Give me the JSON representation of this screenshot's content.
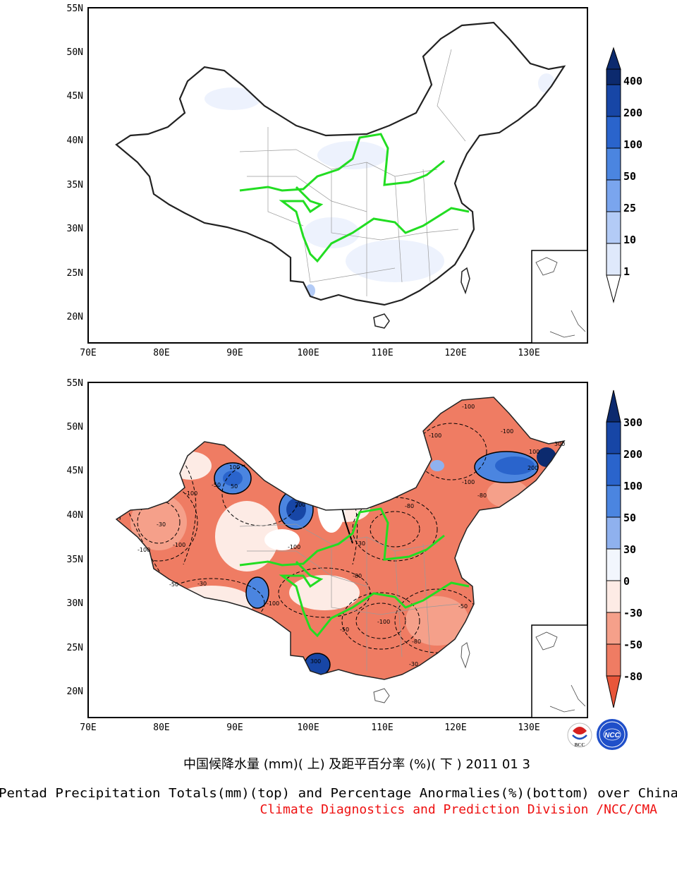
{
  "top_map": {
    "lat_labels": [
      "55N",
      "50N",
      "45N",
      "40N",
      "35N",
      "30N",
      "25N",
      "20N"
    ],
    "lon_labels": [
      "70E",
      "80E",
      "90E",
      "100E",
      "110E",
      "120E",
      "130E"
    ],
    "colorbar": {
      "labels": [
        "400",
        "200",
        "100",
        "50",
        "25",
        "10",
        "1"
      ],
      "colors": [
        "#0c2a6e",
        "#1746a6",
        "#2a64cc",
        "#4b85e0",
        "#7aa5ee",
        "#b3cbf6",
        "#dfe9fb",
        "#ffffff"
      ]
    }
  },
  "bottom_map": {
    "lat_labels": [
      "55N",
      "50N",
      "45N",
      "40N",
      "35N",
      "30N",
      "25N",
      "20N"
    ],
    "lon_labels": [
      "70E",
      "80E",
      "90E",
      "100E",
      "110E",
      "120E",
      "130E"
    ],
    "colorbar": {
      "labels": [
        "300",
        "200",
        "100",
        "50",
        "30",
        "0",
        "-30",
        "-50",
        "-80"
      ],
      "colors": [
        "#0c2a6e",
        "#1746a6",
        "#2a64cc",
        "#4b85e0",
        "#8fb1ee",
        "#f2f6fd",
        "#fdebe5",
        "#f5a08a",
        "#ef7c63",
        "#e8563a"
      ]
    },
    "contour_labels": [
      "-100",
      "-100",
      "-100",
      "-100",
      "-100",
      "-100",
      "-100",
      "-100",
      "-100",
      "-100",
      "-80",
      "-80",
      "-80",
      "-80",
      "-50",
      "-50",
      "-50",
      "-50",
      "-30",
      "-30",
      "-30",
      "-30",
      "50",
      "100",
      "200",
      "200",
      "300",
      "300",
      "100"
    ]
  },
  "logos": {
    "left": "BCC",
    "right": "NCC"
  },
  "footer": {
    "chinese_title": "中国候降水量 (mm)( 上) 及距平百分率 (%)( 下 ) 2011 01 3",
    "english_title": "Pentad Precipitation Totals(mm)(top) and Percentage Anormalies(%)(bottom) over China",
    "division": "Climate Diagnostics and Prediction Division /NCC/CMA"
  }
}
